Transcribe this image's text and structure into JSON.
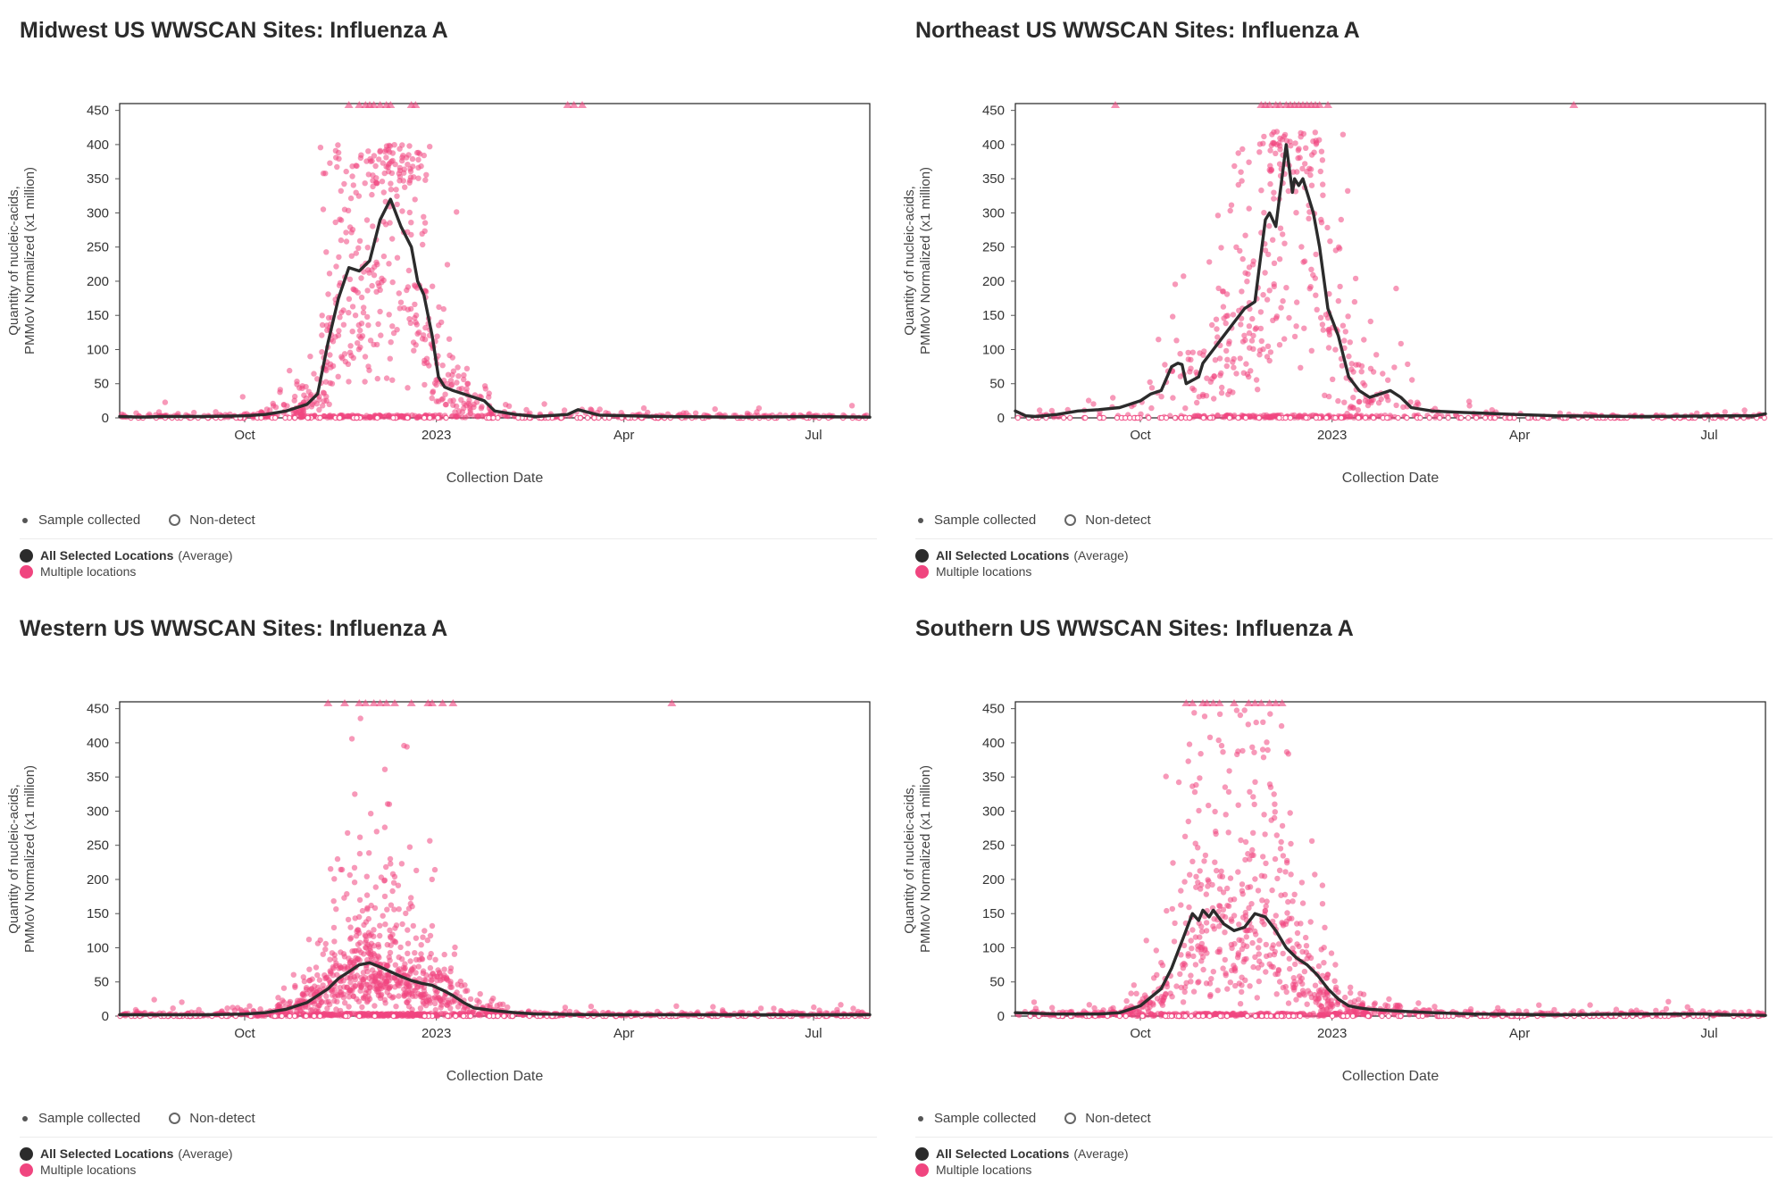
{
  "legend": {
    "sample_collected": "Sample collected",
    "non_detect": "Non-detect",
    "average_bold": "All Selected Locations",
    "average_suffix": "(Average)",
    "multiple": "Multiple locations"
  },
  "colors": {
    "average": "#2b2b2b",
    "points": "#f0457f"
  },
  "chart_data": [
    {
      "type": "scatter",
      "title": "Midwest US WWSCAN Sites: Influenza A",
      "xlabel": "Collection Date",
      "ylabel_line1": "Quantity of nucleic-acids,",
      "ylabel_line2": "PMMoV Normalized (x1 million)",
      "ylim": [
        0,
        460
      ],
      "xlim": [
        0,
        360
      ],
      "yticks": [
        0,
        50,
        100,
        150,
        200,
        250,
        300,
        350,
        400,
        450
      ],
      "xticks": [
        {
          "label": "Oct",
          "x": 60
        },
        {
          "label": "2023",
          "x": 152
        },
        {
          "label": "Apr",
          "x": 242
        },
        {
          "label": "Jul",
          "x": 333
        }
      ],
      "average_line": {
        "name": "All Selected Locations (Average)",
        "x": [
          0,
          10,
          20,
          40,
          60,
          70,
          80,
          90,
          95,
          100,
          105,
          110,
          115,
          120,
          125,
          130,
          135,
          140,
          143,
          146,
          150,
          153,
          156,
          160,
          170,
          175,
          180,
          190,
          200,
          215,
          220,
          230,
          260,
          300,
          330,
          360
        ],
        "y": [
          2,
          1,
          2,
          2,
          3,
          5,
          10,
          20,
          35,
          110,
          175,
          220,
          215,
          230,
          290,
          320,
          280,
          250,
          200,
          180,
          120,
          60,
          45,
          40,
          30,
          25,
          10,
          5,
          2,
          5,
          12,
          4,
          2,
          1,
          2,
          1
        ]
      },
      "scatter": {
        "name": "Multiple locations",
        "count": 900,
        "peak": 125,
        "spread": 28,
        "max": 400,
        "tail": 35,
        "over_max": [
          110,
          115,
          118,
          120,
          122,
          125,
          128,
          130,
          140,
          142,
          215,
          218,
          222
        ]
      }
    },
    {
      "type": "scatter",
      "title": "Northeast US WWSCAN Sites: Influenza A",
      "xlabel": "Collection Date",
      "ylabel_line1": "Quantity of nucleic-acids,",
      "ylabel_line2": "PMMoV Normalized (x1 million)",
      "ylim": [
        0,
        460
      ],
      "xlim": [
        0,
        360
      ],
      "yticks": [
        0,
        50,
        100,
        150,
        200,
        250,
        300,
        350,
        400,
        450
      ],
      "xticks": [
        {
          "label": "Oct",
          "x": 60
        },
        {
          "label": "2023",
          "x": 152
        },
        {
          "label": "Apr",
          "x": 242
        },
        {
          "label": "Jul",
          "x": 333
        }
      ],
      "average_line": {
        "name": "All Selected Locations (Average)",
        "x": [
          0,
          5,
          10,
          20,
          30,
          40,
          50,
          55,
          60,
          65,
          70,
          75,
          78,
          80,
          82,
          85,
          88,
          90,
          95,
          100,
          105,
          110,
          115,
          120,
          122,
          125,
          130,
          133,
          134,
          136,
          138,
          140,
          143,
          146,
          150,
          155,
          160,
          165,
          170,
          175,
          180,
          185,
          190,
          200,
          215,
          240,
          260,
          300,
          340,
          355,
          360
        ],
        "y": [
          10,
          3,
          2,
          5,
          10,
          12,
          15,
          20,
          25,
          35,
          40,
          75,
          80,
          78,
          50,
          55,
          60,
          80,
          100,
          120,
          140,
          160,
          170,
          290,
          300,
          280,
          400,
          330,
          350,
          340,
          350,
          330,
          300,
          250,
          160,
          120,
          60,
          40,
          30,
          35,
          40,
          30,
          15,
          10,
          8,
          5,
          3,
          2,
          3,
          3,
          6
        ]
      },
      "scatter": {
        "name": "Multiple locations",
        "count": 650,
        "peak": 130,
        "spread": 28,
        "max": 420,
        "tail": 30,
        "over_max": [
          48,
          118,
          120,
          122,
          125,
          127,
          130,
          132,
          134,
          136,
          138,
          140,
          142,
          144,
          146,
          150,
          268
        ]
      }
    },
    {
      "type": "scatter",
      "title": "Western US WWSCAN Sites: Influenza A",
      "xlabel": "Collection Date",
      "ylabel_line1": "Quantity of nucleic-acids,",
      "ylabel_line2": "PMMoV Normalized (x1 million)",
      "ylim": [
        0,
        460
      ],
      "xlim": [
        0,
        360
      ],
      "yticks": [
        0,
        50,
        100,
        150,
        200,
        250,
        300,
        350,
        400,
        450
      ],
      "xticks": [
        {
          "label": "Oct",
          "x": 60
        },
        {
          "label": "2023",
          "x": 152
        },
        {
          "label": "Apr",
          "x": 242
        },
        {
          "label": "Jul",
          "x": 333
        }
      ],
      "average_line": {
        "name": "All Selected Locations (Average)",
        "x": [
          0,
          20,
          40,
          60,
          70,
          80,
          90,
          95,
          100,
          105,
          110,
          115,
          120,
          125,
          130,
          135,
          140,
          145,
          150,
          155,
          160,
          165,
          170,
          180,
          190,
          200,
          230,
          260,
          300,
          330,
          360
        ],
        "y": [
          2,
          2,
          2,
          3,
          5,
          10,
          20,
          30,
          40,
          55,
          65,
          75,
          78,
          72,
          65,
          58,
          52,
          48,
          45,
          38,
          30,
          20,
          12,
          8,
          5,
          3,
          2,
          2,
          2,
          2,
          2
        ]
      },
      "scatter": {
        "name": "Multiple locations",
        "count": 1400,
        "peak": 125,
        "spread": 26,
        "max": 450,
        "tail": 25,
        "over_max": [
          100,
          108,
          115,
          118,
          122,
          125,
          128,
          132,
          140,
          148,
          150,
          155,
          160,
          265
        ]
      }
    },
    {
      "type": "scatter",
      "title": "Southern US WWSCAN Sites: Influenza A",
      "xlabel": "Collection Date",
      "ylabel_line1": "Quantity of nucleic-acids,",
      "ylabel_line2": "PMMoV Normalized (x1 million)",
      "ylim": [
        0,
        460
      ],
      "xlim": [
        0,
        360
      ],
      "yticks": [
        0,
        50,
        100,
        150,
        200,
        250,
        300,
        350,
        400,
        450
      ],
      "xticks": [
        {
          "label": "Oct",
          "x": 60
        },
        {
          "label": "2023",
          "x": 152
        },
        {
          "label": "Apr",
          "x": 242
        },
        {
          "label": "Jul",
          "x": 333
        }
      ],
      "average_line": {
        "name": "All Selected Locations (Average)",
        "x": [
          0,
          20,
          40,
          50,
          60,
          70,
          75,
          80,
          85,
          88,
          90,
          93,
          95,
          100,
          105,
          110,
          115,
          120,
          125,
          130,
          135,
          140,
          145,
          150,
          155,
          160,
          165,
          170,
          180,
          200,
          220,
          260,
          300,
          330,
          360
        ],
        "y": [
          5,
          3,
          3,
          5,
          15,
          40,
          70,
          110,
          150,
          140,
          155,
          145,
          155,
          135,
          125,
          130,
          150,
          145,
          125,
          100,
          85,
          75,
          60,
          40,
          25,
          15,
          12,
          10,
          8,
          5,
          3,
          2,
          3,
          3,
          1
        ]
      },
      "scatter": {
        "name": "Multiple locations",
        "count": 1100,
        "peak": 112,
        "spread": 38,
        "max": 450,
        "tail": 35,
        "over_max": [
          82,
          85,
          90,
          92,
          95,
          98,
          105,
          112,
          115,
          118,
          122,
          125,
          128
        ]
      }
    }
  ]
}
